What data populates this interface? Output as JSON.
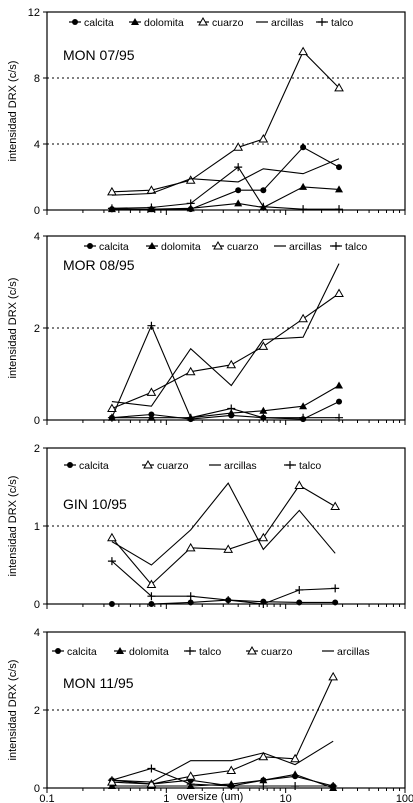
{
  "figure": {
    "xlabel": "oversize (um)",
    "ylabel": "intensidad DRX (c/s)",
    "x_ticks": [
      0.1,
      1,
      10,
      100
    ],
    "x_tick_labels": [
      "0.1",
      "1",
      "10",
      "100"
    ]
  },
  "chart_data": [
    {
      "type": "line",
      "title": "MON 07/95",
      "xscale": "log",
      "xlim": [
        0.1,
        100
      ],
      "ylim": [
        0,
        12
      ],
      "y_ticks": [
        0,
        4,
        8,
        12
      ],
      "y_tick_labels": [
        "0",
        "4",
        "8",
        "12"
      ],
      "grid_y": [
        4,
        8
      ],
      "legend": [
        "calcita",
        "dolomita",
        "cuarzo",
        "arcillas",
        "talco"
      ],
      "series": [
        {
          "name": "calcita",
          "marker": "circle",
          "x": [
            0.35,
            0.75,
            1.6,
            4.0,
            6.5,
            14,
            28
          ],
          "y": [
            0.05,
            0.05,
            0.05,
            1.2,
            1.2,
            3.8,
            2.6
          ]
        },
        {
          "name": "dolomita",
          "marker": "triangle",
          "x": [
            0.35,
            0.75,
            1.6,
            4.0,
            6.5,
            14,
            28
          ],
          "y": [
            0.05,
            0.05,
            0.1,
            0.4,
            0.15,
            1.4,
            1.25
          ]
        },
        {
          "name": "cuarzo",
          "marker": "open-triangle",
          "x": [
            0.35,
            0.75,
            1.6,
            4.0,
            6.5,
            14,
            28
          ],
          "y": [
            1.1,
            1.2,
            1.8,
            3.8,
            4.3,
            9.6,
            7.4
          ]
        },
        {
          "name": "arcillas",
          "marker": "none",
          "x": [
            0.35,
            0.75,
            1.6,
            4.0,
            6.5,
            14,
            28
          ],
          "y": [
            0.9,
            1.0,
            1.9,
            1.7,
            2.5,
            2.2,
            3.1
          ]
        },
        {
          "name": "talco",
          "marker": "plus",
          "x": [
            0.35,
            0.75,
            1.6,
            4.0,
            6.5,
            14,
            28
          ],
          "y": [
            0.1,
            0.15,
            0.4,
            2.6,
            0.2,
            0.05,
            0.05
          ]
        }
      ]
    },
    {
      "type": "line",
      "title": "MOR 08/95",
      "xscale": "log",
      "xlim": [
        0.1,
        100
      ],
      "ylim": [
        0,
        4
      ],
      "y_ticks": [
        0,
        2,
        4
      ],
      "y_tick_labels": [
        "0",
        "2",
        "4"
      ],
      "grid_y": [
        2
      ],
      "legend": [
        "calcita",
        "dolomita",
        "cuarzo",
        "arcillas",
        "talco"
      ],
      "series": [
        {
          "name": "calcita",
          "marker": "circle",
          "x": [
            0.35,
            0.75,
            1.6,
            3.5,
            6.5,
            14,
            28
          ],
          "y": [
            0.05,
            0.12,
            0.02,
            0.1,
            0.05,
            0.02,
            0.4
          ]
        },
        {
          "name": "dolomita",
          "marker": "triangle",
          "x": [
            0.35,
            0.75,
            1.6,
            3.5,
            6.5,
            14,
            28
          ],
          "y": [
            0.05,
            0.05,
            0.05,
            0.15,
            0.2,
            0.3,
            0.75
          ]
        },
        {
          "name": "cuarzo",
          "marker": "open-triangle",
          "x": [
            0.35,
            0.75,
            1.6,
            3.5,
            6.5,
            14,
            28
          ],
          "y": [
            0.25,
            0.6,
            1.05,
            1.2,
            1.6,
            2.2,
            2.75
          ]
        },
        {
          "name": "arcillas",
          "marker": "none",
          "x": [
            0.35,
            0.75,
            1.6,
            3.5,
            6.5,
            14,
            28
          ],
          "y": [
            0.4,
            0.3,
            1.55,
            0.75,
            1.75,
            1.8,
            3.4
          ]
        },
        {
          "name": "talco",
          "marker": "plus",
          "x": [
            0.35,
            0.75,
            1.6,
            3.5,
            6.5,
            14,
            28
          ],
          "y": [
            0.05,
            2.05,
            0.05,
            0.25,
            0.05,
            0.05,
            0.05
          ]
        }
      ]
    },
    {
      "type": "line",
      "title": "GIN 10/95",
      "xscale": "log",
      "xlim": [
        0.1,
        100
      ],
      "ylim": [
        0,
        2
      ],
      "y_ticks": [
        0,
        1,
        2
      ],
      "y_tick_labels": [
        "0",
        "1",
        "2"
      ],
      "grid_y": [
        1
      ],
      "legend": [
        "calcita",
        "cuarzo",
        "arcillas",
        "talco"
      ],
      "series": [
        {
          "name": "calcita",
          "marker": "circle",
          "x": [
            0.35,
            0.75,
            1.6,
            3.3,
            6.5,
            13,
            26
          ],
          "y": [
            0.0,
            0.0,
            0.02,
            0.05,
            0.03,
            0.02,
            0.02
          ]
        },
        {
          "name": "cuarzo",
          "marker": "open-triangle",
          "x": [
            0.35,
            0.75,
            1.6,
            3.3,
            6.5,
            13,
            26
          ],
          "y": [
            0.85,
            0.25,
            0.72,
            0.7,
            0.85,
            1.52,
            1.25
          ]
        },
        {
          "name": "arcillas",
          "marker": "none",
          "x": [
            0.35,
            0.75,
            1.6,
            3.3,
            6.5,
            13,
            26
          ],
          "y": [
            0.8,
            0.5,
            0.95,
            1.55,
            0.7,
            1.2,
            0.65
          ]
        },
        {
          "name": "talco",
          "marker": "plus",
          "x": [
            0.35,
            0.75,
            1.6,
            3.3,
            6.5,
            13,
            26
          ],
          "y": [
            0.55,
            0.1,
            0.1,
            0.05,
            0.0,
            0.18,
            0.2
          ]
        }
      ]
    },
    {
      "type": "line",
      "title": "MON 11/95",
      "xscale": "log",
      "xlim": [
        0.1,
        100
      ],
      "ylim": [
        0,
        4
      ],
      "y_ticks": [
        0,
        2,
        4
      ],
      "y_tick_labels": [
        "0",
        "2",
        "4"
      ],
      "grid_y": [
        2
      ],
      "legend": [
        "calcita",
        "dolomita",
        "talco",
        "cuarzo",
        "arcillas"
      ],
      "series": [
        {
          "name": "calcita",
          "marker": "circle",
          "x": [
            0.35,
            0.75,
            1.6,
            3.5,
            6.5,
            12,
            25
          ],
          "y": [
            0.2,
            0.1,
            0.2,
            0.05,
            0.2,
            0.3,
            0.05
          ]
        },
        {
          "name": "dolomita",
          "marker": "triangle",
          "x": [
            0.35,
            0.75,
            1.6,
            3.5,
            6.5,
            12,
            25
          ],
          "y": [
            0.05,
            0.05,
            0.05,
            0.1,
            0.2,
            0.35,
            0.0
          ]
        },
        {
          "name": "talco",
          "marker": "plus",
          "x": [
            0.35,
            0.75,
            1.6,
            3.5,
            6.5,
            12,
            25
          ],
          "y": [
            0.2,
            0.5,
            0.1,
            0.05,
            0.05,
            0.05,
            0.05
          ]
        },
        {
          "name": "cuarzo",
          "marker": "open-triangle",
          "x": [
            0.35,
            0.75,
            1.6,
            3.5,
            6.5,
            12,
            25
          ],
          "y": [
            0.15,
            0.1,
            0.3,
            0.45,
            0.8,
            0.75,
            2.85
          ]
        },
        {
          "name": "arcillas",
          "marker": "none",
          "x": [
            0.35,
            0.75,
            1.6,
            3.5,
            6.5,
            12,
            25
          ],
          "y": [
            0.2,
            0.15,
            0.7,
            0.7,
            0.9,
            0.6,
            1.2
          ]
        }
      ]
    }
  ]
}
